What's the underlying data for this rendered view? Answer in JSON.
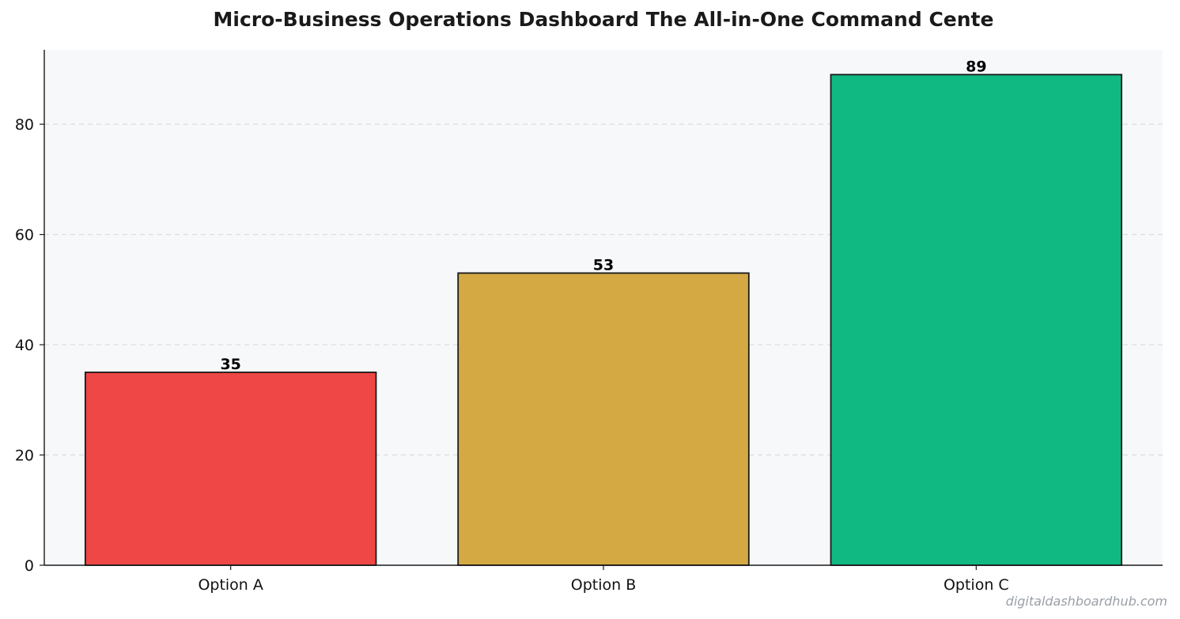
{
  "chart_data": {
    "type": "bar",
    "title": "Micro-Business Operations Dashboard  The All-in-One Command Cente",
    "categories": [
      "Option A",
      "Option B",
      "Option C"
    ],
    "values": [
      35,
      53,
      89
    ],
    "colors": [
      "#ef4646",
      "#d4a843",
      "#10b981"
    ],
    "bar_edge_color": "#1a1a1a",
    "xlabel": "",
    "ylabel": "",
    "ylim": [
      0,
      93.5
    ],
    "yticks": [
      0,
      20,
      40,
      60,
      80
    ],
    "grid": "y-dashed",
    "plot_background": "#f7f8fa",
    "value_labels": [
      "35",
      "53",
      "89"
    ]
  },
  "watermark": "digitaldashboardhub.com"
}
